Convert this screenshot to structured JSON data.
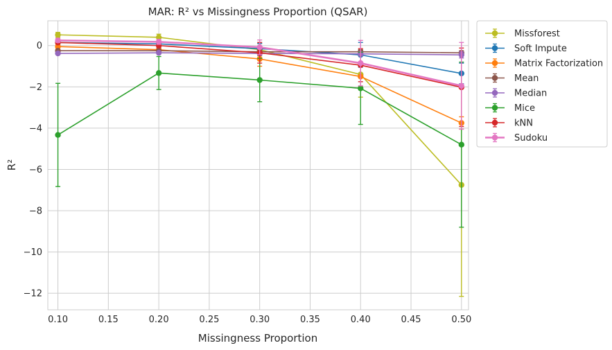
{
  "chart_data": {
    "type": "line",
    "title": "MAR: R² vs Missingness Proportion (QSAR)",
    "xlabel": "Missingness Proportion",
    "ylabel": "R²",
    "xlim": [
      0.09,
      0.507
    ],
    "ylim": [
      -12.8,
      1.2
    ],
    "xticks": [
      0.1,
      0.15,
      0.2,
      0.25,
      0.3,
      0.35,
      0.4,
      0.45,
      0.5
    ],
    "xtick_labels": [
      "0.10",
      "0.15",
      "0.20",
      "0.25",
      "0.30",
      "0.35",
      "0.40",
      "0.45",
      "0.50"
    ],
    "yticks": [
      0,
      -2,
      -4,
      -6,
      -8,
      -10,
      -12
    ],
    "ytick_labels": [
      "0",
      "−2",
      "−4",
      "−6",
      "−8",
      "−10",
      "−12"
    ],
    "grid": true,
    "legend_position": "outside-top-right",
    "x": [
      0.1,
      0.2,
      0.3,
      0.4,
      0.5
    ],
    "series": [
      {
        "name": "Missforest",
        "color": "#bcbd22",
        "values": [
          0.52,
          0.4,
          -0.2,
          -1.4,
          -6.75
        ],
        "err": [
          0.12,
          0.15,
          0.3,
          1.1,
          5.4
        ],
        "width": 1.6
      },
      {
        "name": "Soft Impute",
        "color": "#1f77b4",
        "values": [
          0.15,
          0.08,
          -0.15,
          -0.45,
          -1.35
        ],
        "err": [
          0.08,
          0.1,
          0.25,
          0.6,
          0.5
        ],
        "width": 1.6
      },
      {
        "name": "Matrix Factorization",
        "color": "#ff7f0e",
        "values": [
          -0.05,
          -0.2,
          -0.65,
          -1.5,
          -3.75
        ],
        "err": [
          0.1,
          0.15,
          0.35,
          0.5,
          0.3
        ],
        "width": 1.6
      },
      {
        "name": "Mean",
        "color": "#8c564b",
        "values": [
          -0.25,
          -0.25,
          -0.3,
          -0.3,
          -0.35
        ],
        "err": [
          0.05,
          0.05,
          0.1,
          0.1,
          0.1
        ],
        "width": 1.6
      },
      {
        "name": "Median",
        "color": "#9467bd",
        "values": [
          -0.38,
          -0.35,
          -0.38,
          -0.4,
          -0.45
        ],
        "err": [
          0.05,
          0.05,
          0.1,
          0.1,
          0.15
        ],
        "width": 1.6
      },
      {
        "name": "Mice",
        "color": "#2ca02c",
        "values": [
          -4.33,
          -1.33,
          -1.67,
          -2.07,
          -4.8
        ],
        "err": [
          2.5,
          0.8,
          1.05,
          1.75,
          4.0
        ],
        "width": 1.6
      },
      {
        "name": "kNN",
        "color": "#d62728",
        "values": [
          0.15,
          0.0,
          -0.35,
          -0.95,
          -2.02
        ],
        "err": [
          0.08,
          0.1,
          0.5,
          0.8,
          1.9
        ],
        "width": 1.6
      },
      {
        "name": "Sudoku",
        "color": "#e377c2",
        "values": [
          0.25,
          0.18,
          -0.08,
          -0.85,
          -1.95
        ],
        "err": [
          0.1,
          0.12,
          0.35,
          1.1,
          2.1
        ],
        "width": 2.6
      }
    ]
  }
}
